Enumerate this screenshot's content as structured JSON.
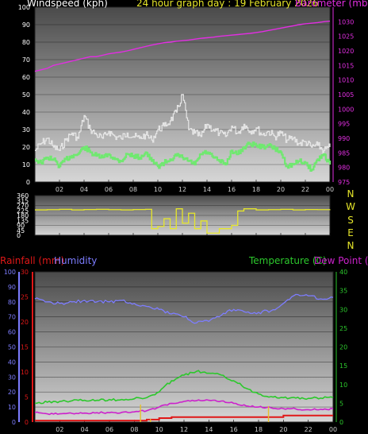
{
  "header": {
    "wind_title": "Windspeed (kph)",
    "main_title": "24 hour graph day : 19 February 2026",
    "baro_title": "Barometer (mb)"
  },
  "bottom_titles": {
    "rain": "Rainfall (mm)",
    "hum": "Humidity",
    "temp": "Temperature (C)",
    "dew": "Dew Point (C)"
  },
  "colors": {
    "wind": "#e6e6e6",
    "gust": "#70e870",
    "baro": "#e22ee2",
    "dir": "#e6e62a",
    "hum": "#7d7dff",
    "temp": "#2cc82c",
    "dew": "#cc22cc",
    "rain": "#e01818",
    "rain_bar": "#e6c02a"
  },
  "compass": [
    "N",
    "W",
    "S",
    "E",
    "N"
  ],
  "x_ticks": [
    "02",
    "04",
    "06",
    "08",
    "10",
    "12",
    "14",
    "16",
    "18",
    "20",
    "22",
    "00"
  ],
  "chart_data": [
    {
      "type": "line",
      "title": "24 hour graph day : 19 February 2026",
      "x_hours": [
        0,
        0.5,
        1,
        1.5,
        2,
        2.5,
        3,
        3.5,
        4,
        4.5,
        5,
        5.5,
        6,
        6.5,
        7,
        7.5,
        8,
        8.5,
        9,
        9.5,
        10,
        10.5,
        11,
        11.5,
        12,
        12.5,
        13,
        13.5,
        14,
        14.5,
        15,
        15.5,
        16,
        16.5,
        17,
        17.5,
        18,
        18.5,
        19,
        19.5,
        20,
        20.5,
        21,
        21.5,
        22,
        22.5,
        23,
        23.5,
        24
      ],
      "ylabel": "Windspeed (kph)",
      "ylim": [
        0,
        100
      ],
      "y2label": "Barometer (mb)",
      "y2lim": [
        975,
        1035
      ],
      "series": [
        {
          "values": [
            18,
            22,
            25,
            20,
            18,
            24,
            28,
            25,
            38,
            30,
            27,
            25,
            29,
            26,
            25,
            28,
            26,
            25,
            27,
            24,
            30,
            32,
            35,
            40,
            50,
            30,
            28,
            26,
            33,
            30,
            28,
            26,
            32,
            28,
            33,
            29,
            31,
            27,
            29,
            26,
            28,
            24,
            25,
            22,
            23,
            20,
            21,
            18,
            20
          ]
        },
        {
          "values": [
            13,
            11,
            14,
            13,
            9,
            13,
            15,
            16,
            20,
            17,
            15,
            14,
            16,
            13,
            12,
            16,
            15,
            14,
            17,
            12,
            9,
            11,
            13,
            15,
            14,
            12,
            10,
            16,
            17,
            14,
            12,
            10,
            18,
            16,
            20,
            22,
            21,
            20,
            21,
            19,
            17,
            9,
            10,
            12,
            11,
            7,
            13,
            16,
            10
          ]
        },
        {
          "name": "Barometer (mb)",
          "values": [
            1013,
            1013.5,
            1014,
            1015,
            1015.5,
            1016,
            1016.5,
            1017,
            1017.5,
            1018,
            1018,
            1018.5,
            1019,
            1019.3,
            1019.6,
            1020,
            1020.5,
            1021,
            1021.5,
            1022,
            1022.4,
            1022.8,
            1023,
            1023.3,
            1023.5,
            1023.7,
            1024,
            1024.3,
            1024.5,
            1024.7,
            1025,
            1025.2,
            1025.4,
            1025.6,
            1025.8,
            1026,
            1026.3,
            1026.6,
            1027,
            1027.4,
            1027.8,
            1028.2,
            1028.6,
            1029,
            1029.3,
            1029.5,
            1029.7,
            1030,
            1030.2
          ]
        }
      ]
    },
    {
      "type": "line",
      "ylim": [
        0,
        360
      ],
      "y_ticks": [
        0,
        45,
        90,
        135,
        180,
        225,
        270,
        315,
        360
      ],
      "series": [
        {
          "x_hours": [
            0,
            1,
            2,
            3,
            4,
            5,
            6,
            7,
            8,
            9,
            9.5,
            10,
            10.5,
            11,
            11.5,
            12,
            12.5,
            13,
            13.5,
            14,
            15,
            16,
            16.5,
            17,
            18,
            19,
            20,
            21,
            22,
            23,
            24
          ],
          "values": [
            230,
            232,
            235,
            230,
            233,
            235,
            232,
            230,
            233,
            235,
            60,
            80,
            150,
            60,
            240,
            110,
            200,
            60,
            130,
            20,
            60,
            90,
            220,
            240,
            230,
            232,
            235,
            230,
            233,
            232,
            235
          ]
        }
      ]
    },
    {
      "type": "line",
      "x_hours": [
        0,
        1,
        2,
        3,
        4,
        5,
        6,
        7,
        8,
        9,
        10,
        11,
        12,
        13,
        14,
        15,
        16,
        17,
        18,
        19,
        20,
        21,
        22,
        23,
        24
      ],
      "left_axes": [
        {
          "name": "Rainfall (mm)",
          "ylim": [
            0,
            30
          ]
        },
        {
          "name": "Humidity",
          "ylim": [
            0,
            100
          ]
        }
      ],
      "y2label": "Temperature (C) / Dew Point (C)",
      "y2lim": [
        0,
        40
      ],
      "series": [
        {
          "name": "Humidity",
          "values": [
            82,
            80,
            79,
            80,
            81,
            80,
            80,
            81,
            79,
            77,
            75,
            72,
            70,
            66,
            67,
            71,
            75,
            73,
            73,
            74,
            79,
            85,
            84,
            82,
            83
          ]
        },
        {
          "name": "Temperature (C)",
          "values": [
            5,
            5.3,
            5.5,
            5.7,
            5.8,
            5.8,
            6,
            6,
            6.2,
            6.5,
            8,
            11,
            12.5,
            13.5,
            13,
            12.5,
            11,
            9,
            7.5,
            6.8,
            6.5,
            6.4,
            6.3,
            6.4,
            6.5
          ]
        },
        {
          "name": "Dew Point (C)",
          "values": [
            2.5,
            2.2,
            2.2,
            2.3,
            2.4,
            2.5,
            2.5,
            2.6,
            2.7,
            3,
            4,
            5,
            5.5,
            5.7,
            5.8,
            5.6,
            5,
            4.3,
            4,
            3.8,
            3.6,
            3.5,
            3.3,
            3.4,
            3.5
          ]
        },
        {
          "name": "Rainfall (mm)",
          "values": [
            0.3,
            0.3,
            0.3,
            0.3,
            0.3,
            0.3,
            0.3,
            0.3,
            0.3,
            0.5,
            0.8,
            1,
            1,
            1,
            1,
            1,
            1,
            1,
            1,
            1,
            1.3,
            1.3,
            1.3,
            1.3,
            1.3
          ]
        }
      ],
      "rain_bars": [
        {
          "hour": 8.5,
          "value": 3.5
        },
        {
          "hour": 9.3,
          "value": 0.6
        },
        {
          "hour": 18.8,
          "value": 3.2
        }
      ]
    }
  ]
}
